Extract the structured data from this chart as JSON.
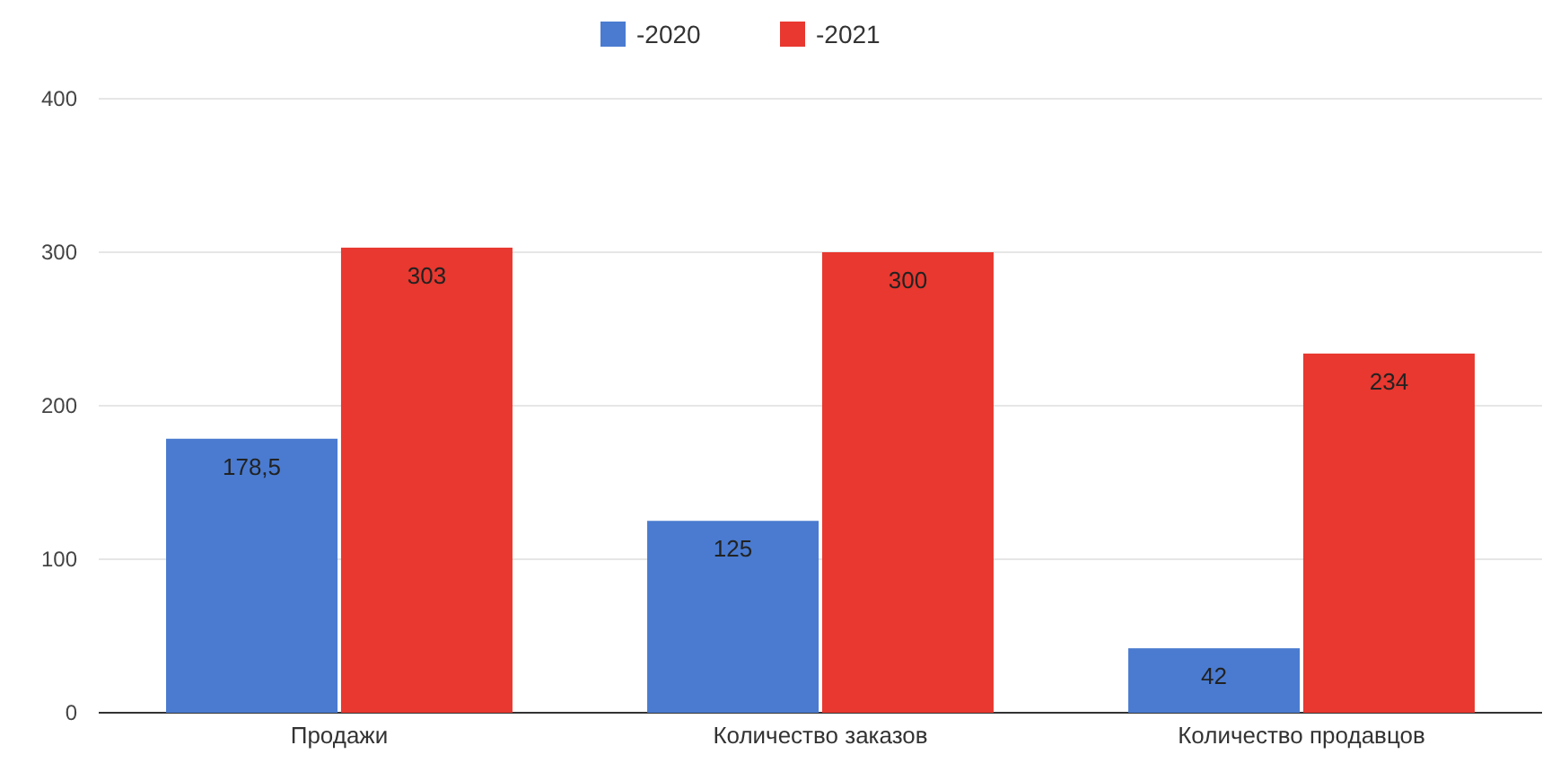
{
  "chart_data": {
    "type": "bar",
    "categories": [
      "Продажи",
      "Количество заказов",
      "Количество продавцов"
    ],
    "series": [
      {
        "name": "-2020",
        "color": "#4a7bd0",
        "values": [
          178.5,
          125,
          42
        ],
        "value_labels": [
          "178,5",
          "125",
          "42"
        ]
      },
      {
        "name": "-2021",
        "color": "#e8382f",
        "values": [
          303,
          300,
          234
        ],
        "value_labels": [
          "303",
          "300",
          "234"
        ]
      }
    ],
    "ylim": [
      0,
      400
    ],
    "yticks": [
      0,
      100,
      200,
      300,
      400
    ],
    "grid": "y",
    "legend": "top"
  }
}
